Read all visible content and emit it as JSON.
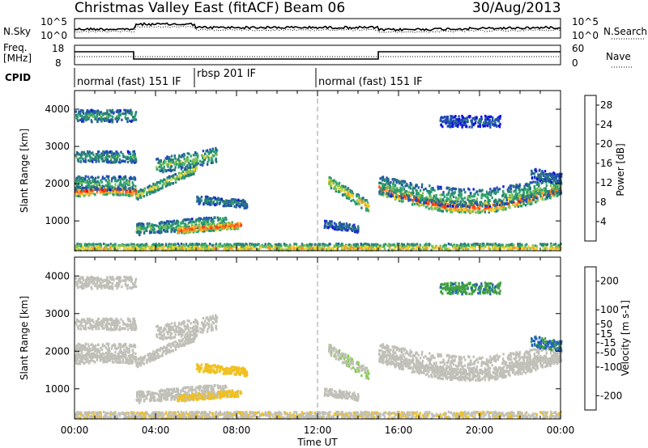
{
  "header": {
    "station": "Christmas Valley East (fitACF)",
    "beam": "Beam 06",
    "date": "30/Aug/2013"
  },
  "noise_panel": {
    "left_label": "N.Sky",
    "right_label": "N.Search",
    "left_ticks": [
      "10^5",
      "10^0"
    ],
    "right_ticks": [
      "10^5",
      "10^0"
    ]
  },
  "freq_panel": {
    "left_label_line1": "Freq.",
    "left_label_line2": "[MHz]",
    "right_label": "Nave",
    "left_ticks": [
      "18",
      "8"
    ],
    "right_ticks": [
      "60",
      "0"
    ]
  },
  "cpid": {
    "label": "CPID",
    "segments": [
      {
        "name": "normal (fast) 151 IF",
        "start_hour": 0,
        "end_hour": 6
      },
      {
        "name": "rbsp 201 IF",
        "start_hour": 6,
        "end_hour": 12
      },
      {
        "name": "normal (fast) 151 IF",
        "start_hour": 12,
        "end_hour": 24
      }
    ]
  },
  "chart_data": [
    {
      "type": "heatmap",
      "title": "",
      "ylabel": "Slant Range [km]",
      "xlabel": "Time UT",
      "x_ticks": [
        "00:00",
        "04:00",
        "08:00",
        "12:00",
        "16:00",
        "20:00",
        "00:00"
      ],
      "y_ticks": [
        1000,
        2000,
        3000,
        4000
      ],
      "ylim": [
        200,
        4500
      ],
      "xlim_hours": [
        0,
        24
      ],
      "colorbar": {
        "label": "Power [dB]",
        "ticks": [
          4,
          8,
          12,
          16,
          20,
          24,
          28
        ],
        "range": [
          0,
          30
        ],
        "colors": [
          "#1010e0",
          "#2050b0",
          "#2a7a7a",
          "#2aa070",
          "#80c050",
          "#f0d030",
          "#ff9020",
          "#ff4010",
          "#e00000"
        ]
      }
    },
    {
      "type": "heatmap",
      "title": "",
      "ylabel": "Slant Range [km]",
      "xlabel": "Time UT",
      "x_ticks": [
        "00:00",
        "04:00",
        "08:00",
        "12:00",
        "16:00",
        "20:00",
        "00:00"
      ],
      "y_ticks": [
        1000,
        2000,
        3000,
        4000
      ],
      "ylim": [
        200,
        4500
      ],
      "xlim_hours": [
        0,
        24
      ],
      "colorbar": {
        "label": "Velocity [m s-1]",
        "ticks": [
          200,
          100,
          50,
          15,
          -15,
          -50,
          -100,
          -200
        ],
        "range": [
          -250,
          250
        ],
        "colors": [
          "#e00000",
          "#ff4010",
          "#ff9020",
          "#f0c020",
          "#c0c0b8",
          "#c0c0b8",
          "#80d040",
          "#40a040",
          "#2060c0",
          "#1010d0"
        ]
      }
    }
  ],
  "x_axis": {
    "title": "Time UT",
    "ticks": [
      "00:00",
      "04:00",
      "08:00",
      "12:00",
      "16:00",
      "20:00",
      "00:00"
    ]
  }
}
